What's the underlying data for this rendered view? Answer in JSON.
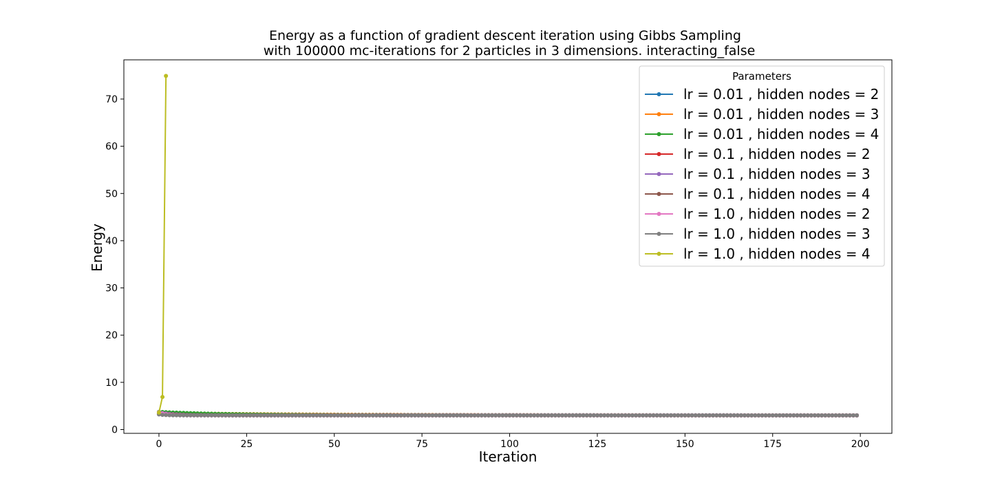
{
  "chart_data": {
    "type": "line",
    "title_line1": "Energy as a function of gradient descent iteration using Gibbs Sampling",
    "title_line2": "with 100000 mc-iterations for 2 particles in 3 dimensions. interacting_false",
    "xlabel": "Iteration",
    "ylabel": "Energy",
    "xlim": [
      -10,
      209
    ],
    "ylim": [
      -0.8,
      78.3
    ],
    "xticks": [
      0,
      25,
      50,
      75,
      100,
      125,
      150,
      175,
      200
    ],
    "yticks": [
      0,
      10,
      20,
      30,
      40,
      50,
      60,
      70
    ],
    "grid": false,
    "legend": {
      "title": "Parameters",
      "placement": "upper right"
    },
    "series": [
      {
        "name": "lr = 0.01 , hidden nodes = 2",
        "color": "#1f77b4",
        "n_points": 200,
        "start": 3.4,
        "end": 3.0,
        "decay": 50
      },
      {
        "name": "lr = 0.01 , hidden nodes = 3",
        "color": "#ff7f0e",
        "n_points": 200,
        "start": 3.5,
        "end": 3.0,
        "decay": 40
      },
      {
        "name": "lr = 0.01 , hidden nodes = 4",
        "color": "#2ca02c",
        "n_points": 200,
        "start": 3.75,
        "end": 3.0,
        "decay": 20
      },
      {
        "name": "lr = 0.1 , hidden nodes = 2",
        "color": "#d62728",
        "n_points": 200,
        "start": 3.3,
        "end": 3.0,
        "decay": 6
      },
      {
        "name": "lr = 0.1 , hidden nodes = 3",
        "color": "#9467bd",
        "n_points": 200,
        "start": 3.6,
        "end": 3.0,
        "decay": 5
      },
      {
        "name": "lr = 0.1 , hidden nodes = 4",
        "color": "#8c564b",
        "n_points": 200,
        "start": 3.4,
        "end": 3.0,
        "decay": 5
      },
      {
        "name": "lr = 1.0 , hidden nodes = 2",
        "color": "#e377c2",
        "n_points": 200,
        "start": 3.7,
        "end": 3.0,
        "decay": 2
      },
      {
        "name": "lr = 1.0 , hidden nodes = 3",
        "color": "#7f7f7f",
        "n_points": 200,
        "start": 3.2,
        "end": 3.0,
        "decay": 2
      },
      {
        "name": "lr = 1.0 , hidden nodes = 4",
        "color": "#bcbd22",
        "x": [
          0,
          1,
          2
        ],
        "y": [
          3.6,
          6.9,
          74.9
        ]
      }
    ]
  }
}
